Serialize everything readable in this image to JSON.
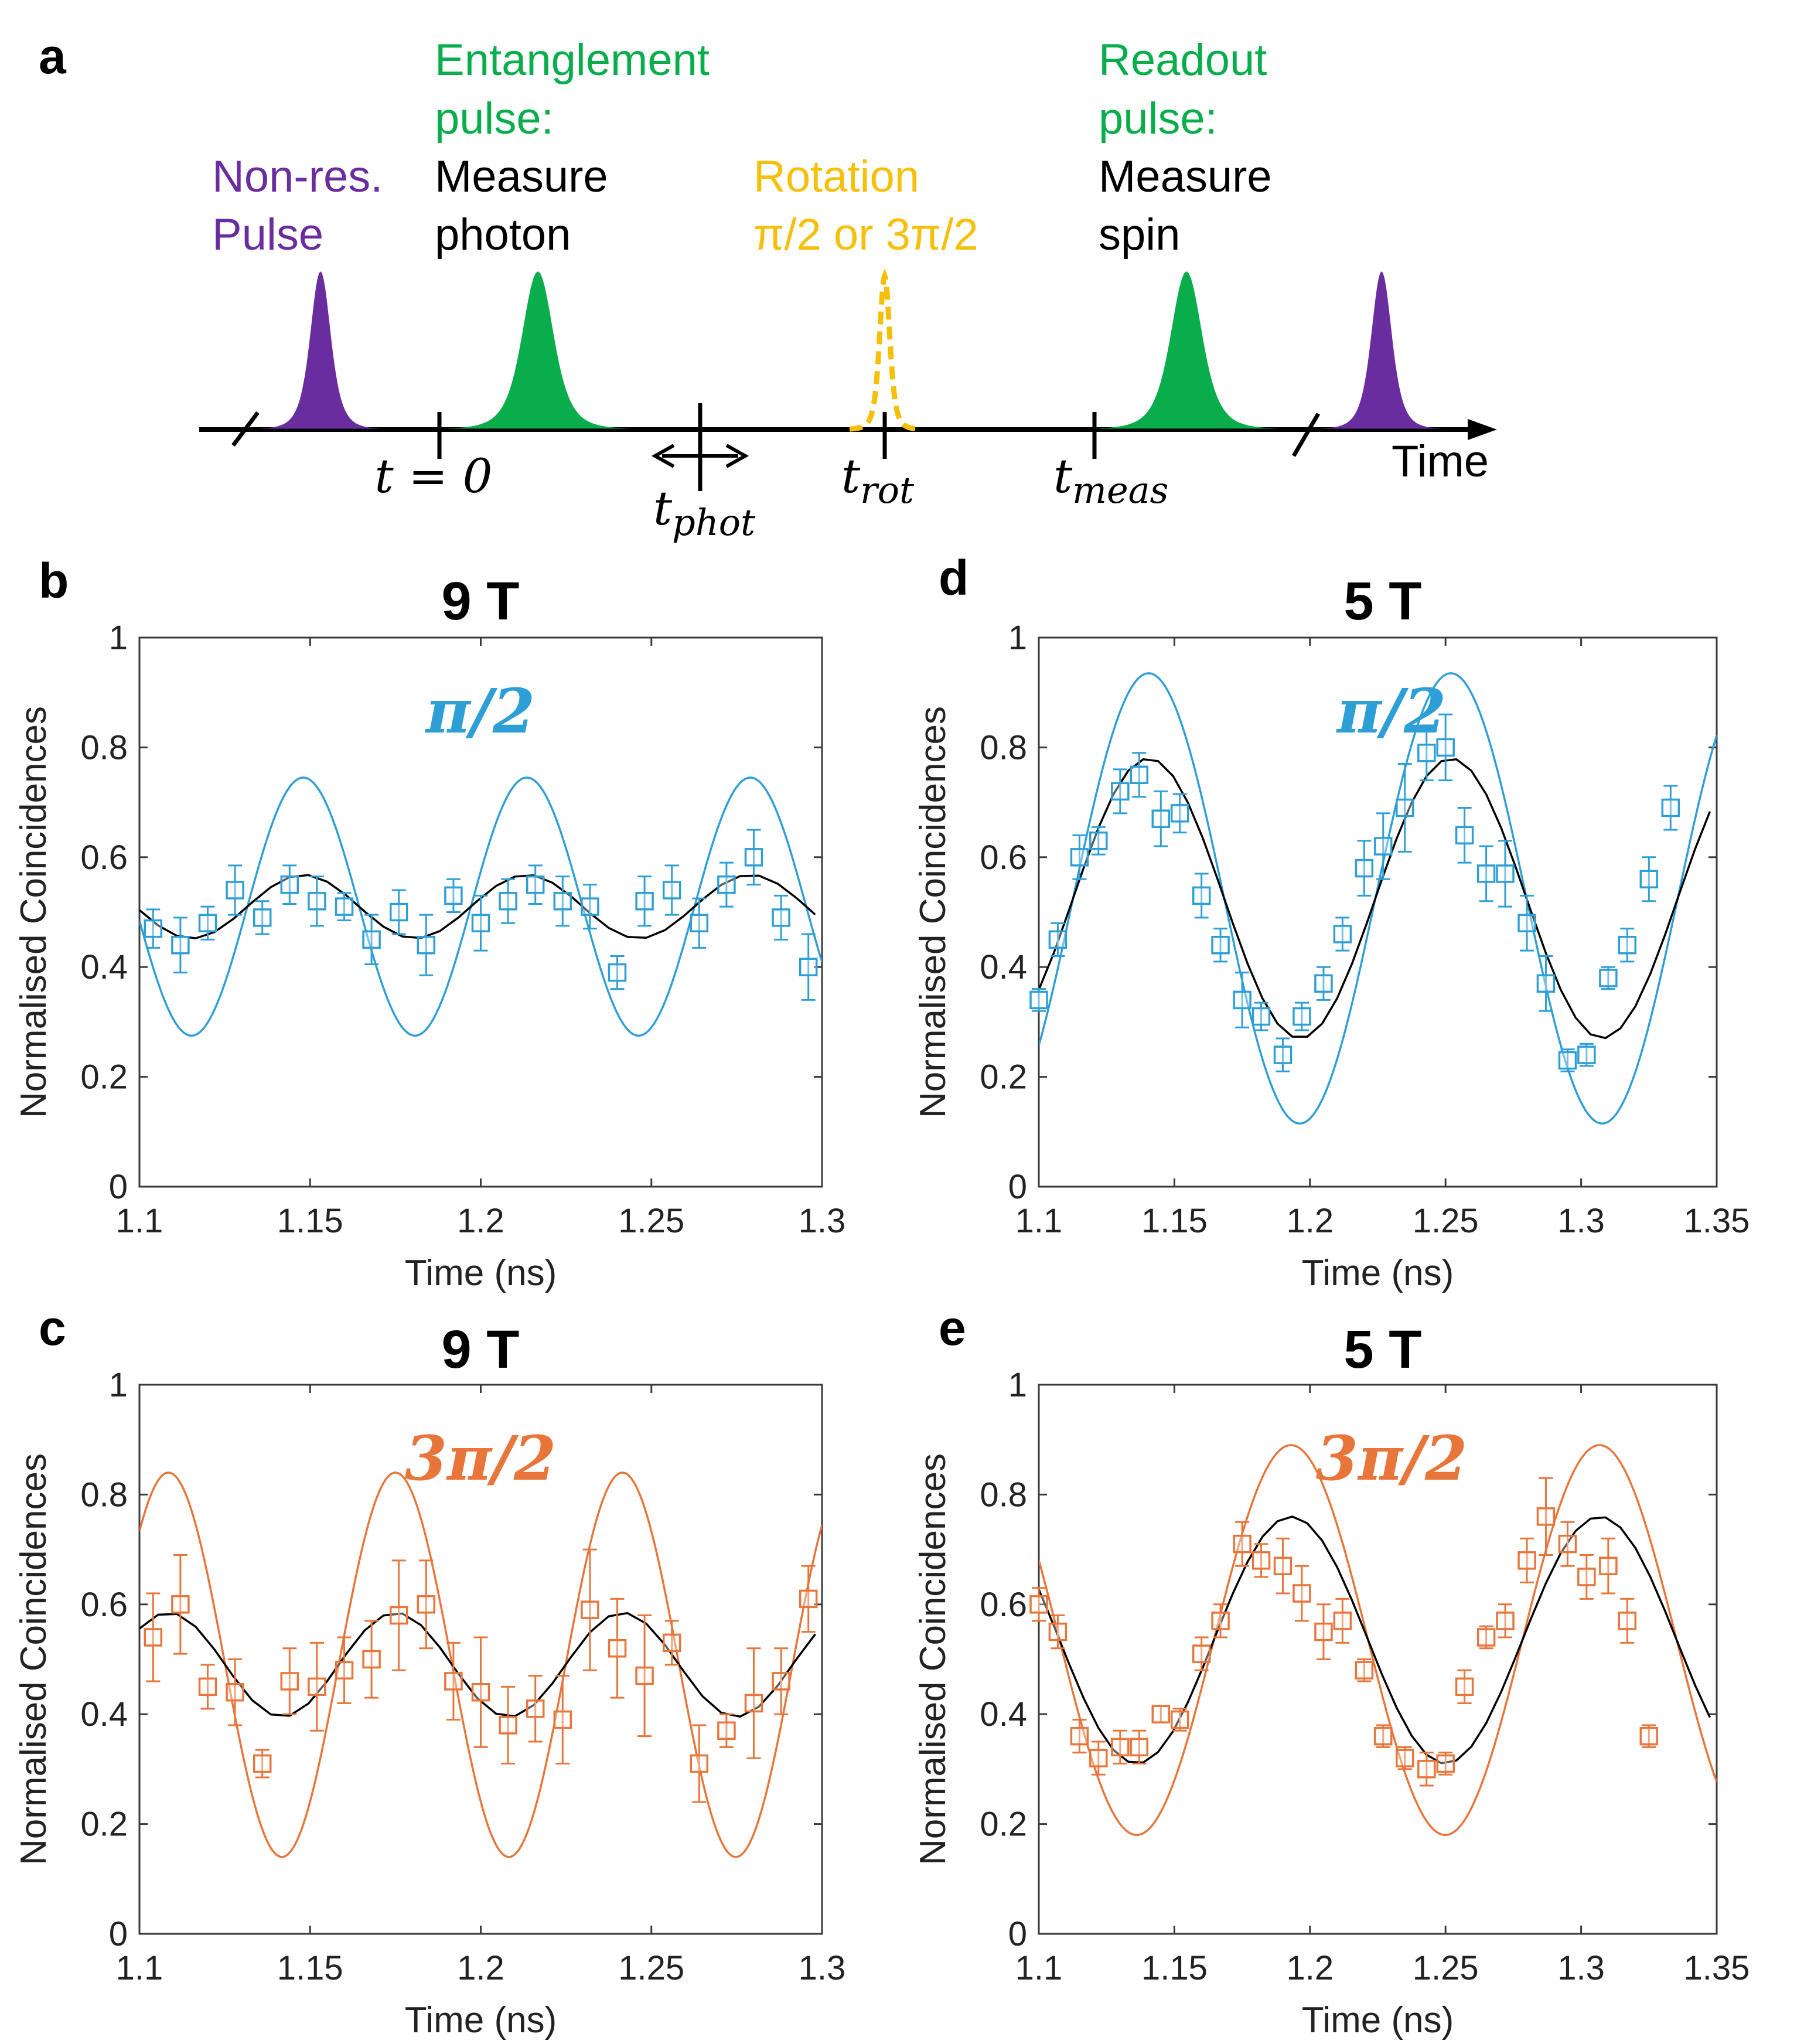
{
  "figure": {
    "panel_labels": [
      "a",
      "b",
      "c",
      "d",
      "e"
    ]
  },
  "schematic": {
    "nonres_label": [
      "Non-res.",
      "Pulse"
    ],
    "entangle_label": [
      "Entanglement",
      "pulse:"
    ],
    "entangle_sub": [
      "Measure",
      "photon"
    ],
    "rotation_label": [
      "Rotation",
      "π/2 or 3π/2"
    ],
    "readout_label": [
      "Readout",
      "pulse:"
    ],
    "readout_sub": [
      "Measure",
      "spin"
    ],
    "time_label": "Time",
    "t0": "t = 0",
    "tphot": {
      "base": "t",
      "sub": "phot"
    },
    "trot": {
      "base": "t",
      "sub": "rot"
    },
    "tmeas": {
      "base": "t",
      "sub": "meas"
    },
    "colors": {
      "nonres": "#6a2d9f",
      "entangle": "#0aad4c",
      "rotation": "#f6c00a",
      "black": "#000000"
    }
  },
  "chart_data": [
    {
      "panel": "b",
      "type": "scatter",
      "title": "9 T",
      "annotation": "π/2",
      "color": "#2e9fd6",
      "xlabel": "Time (ns)",
      "ylabel": "Normalised Coincidences",
      "xlim": [
        1.1,
        1.3
      ],
      "ylim": [
        0,
        1
      ],
      "xticks": [
        "1.1",
        "1.15",
        "1.2",
        "1.25",
        "1.3"
      ],
      "yticks": [
        "0",
        "0.2",
        "0.4",
        "0.6",
        "0.8",
        "1"
      ],
      "ideal": {
        "mean": 0.51,
        "amp": 0.235,
        "period": 0.0655,
        "t_peak": 1.148
      },
      "fit": {
        "mean": 0.51,
        "amp": 0.058,
        "period": 0.0655,
        "t_peak": 1.148,
        "step": 0.0055
      },
      "points": [
        {
          "x": 1.104,
          "y": 0.47,
          "err": 0.035
        },
        {
          "x": 1.112,
          "y": 0.44,
          "err": 0.05
        },
        {
          "x": 1.12,
          "y": 0.48,
          "err": 0.03
        },
        {
          "x": 1.128,
          "y": 0.54,
          "err": 0.045
        },
        {
          "x": 1.136,
          "y": 0.49,
          "err": 0.03
        },
        {
          "x": 1.144,
          "y": 0.55,
          "err": 0.035
        },
        {
          "x": 1.152,
          "y": 0.52,
          "err": 0.045
        },
        {
          "x": 1.16,
          "y": 0.51,
          "err": 0.025
        },
        {
          "x": 1.168,
          "y": 0.45,
          "err": 0.045
        },
        {
          "x": 1.176,
          "y": 0.5,
          "err": 0.04
        },
        {
          "x": 1.184,
          "y": 0.44,
          "err": 0.055
        },
        {
          "x": 1.192,
          "y": 0.53,
          "err": 0.03
        },
        {
          "x": 1.2,
          "y": 0.48,
          "err": 0.05
        },
        {
          "x": 1.208,
          "y": 0.52,
          "err": 0.04
        },
        {
          "x": 1.216,
          "y": 0.55,
          "err": 0.035
        },
        {
          "x": 1.224,
          "y": 0.52,
          "err": 0.045
        },
        {
          "x": 1.232,
          "y": 0.51,
          "err": 0.04
        },
        {
          "x": 1.24,
          "y": 0.39,
          "err": 0.03
        },
        {
          "x": 1.248,
          "y": 0.52,
          "err": 0.045
        },
        {
          "x": 1.256,
          "y": 0.54,
          "err": 0.045
        },
        {
          "x": 1.264,
          "y": 0.48,
          "err": 0.045
        },
        {
          "x": 1.272,
          "y": 0.55,
          "err": 0.04
        },
        {
          "x": 1.28,
          "y": 0.6,
          "err": 0.05
        },
        {
          "x": 1.288,
          "y": 0.49,
          "err": 0.04
        },
        {
          "x": 1.296,
          "y": 0.4,
          "err": 0.06
        }
      ]
    },
    {
      "panel": "c",
      "type": "scatter",
      "title": "9 T",
      "annotation": "3π/2",
      "color": "#e8753a",
      "xlabel": "Time (ns)",
      "ylabel": "Normalised Coincidences",
      "xlim": [
        1.1,
        1.3
      ],
      "ylim": [
        0,
        1
      ],
      "xticks": [
        "1.1",
        "1.15",
        "1.2",
        "1.25",
        "1.3"
      ],
      "yticks": [
        "0",
        "0.2",
        "0.4",
        "0.6",
        "0.8",
        "1"
      ],
      "ideal": {
        "mean": 0.49,
        "amp": 0.35,
        "period": 0.0665,
        "t_peak": 1.175
      },
      "fit": {
        "mean": 0.49,
        "amp": 0.095,
        "period": 0.0665,
        "t_peak": 1.175,
        "step": 0.0055
      },
      "points": [
        {
          "x": 1.104,
          "y": 0.54,
          "err": 0.08
        },
        {
          "x": 1.112,
          "y": 0.6,
          "err": 0.09
        },
        {
          "x": 1.12,
          "y": 0.45,
          "err": 0.04
        },
        {
          "x": 1.128,
          "y": 0.44,
          "err": 0.06
        },
        {
          "x": 1.136,
          "y": 0.31,
          "err": 0.025
        },
        {
          "x": 1.144,
          "y": 0.46,
          "err": 0.06
        },
        {
          "x": 1.152,
          "y": 0.45,
          "err": 0.08
        },
        {
          "x": 1.16,
          "y": 0.48,
          "err": 0.06
        },
        {
          "x": 1.168,
          "y": 0.5,
          "err": 0.07
        },
        {
          "x": 1.176,
          "y": 0.58,
          "err": 0.1
        },
        {
          "x": 1.184,
          "y": 0.6,
          "err": 0.08
        },
        {
          "x": 1.192,
          "y": 0.46,
          "err": 0.07
        },
        {
          "x": 1.2,
          "y": 0.44,
          "err": 0.1
        },
        {
          "x": 1.208,
          "y": 0.38,
          "err": 0.07
        },
        {
          "x": 1.216,
          "y": 0.41,
          "err": 0.06
        },
        {
          "x": 1.224,
          "y": 0.39,
          "err": 0.08
        },
        {
          "x": 1.232,
          "y": 0.59,
          "err": 0.11
        },
        {
          "x": 1.24,
          "y": 0.52,
          "err": 0.09
        },
        {
          "x": 1.248,
          "y": 0.47,
          "err": 0.11
        },
        {
          "x": 1.256,
          "y": 0.53,
          "err": 0.04
        },
        {
          "x": 1.264,
          "y": 0.31,
          "err": 0.07
        },
        {
          "x": 1.272,
          "y": 0.37,
          "err": 0.03
        },
        {
          "x": 1.28,
          "y": 0.42,
          "err": 0.1
        },
        {
          "x": 1.288,
          "y": 0.46,
          "err": 0.06
        },
        {
          "x": 1.296,
          "y": 0.61,
          "err": 0.06
        }
      ]
    },
    {
      "panel": "d",
      "type": "scatter",
      "title": "5 T",
      "annotation": "π/2",
      "color": "#2e9fd6",
      "xlabel": "Time (ns)",
      "ylabel": "Normalised Coincidences",
      "xlim": [
        1.1,
        1.35
      ],
      "ylim": [
        0,
        1
      ],
      "xticks": [
        "1.1",
        "1.15",
        "1.2",
        "1.25",
        "1.3",
        "1.35"
      ],
      "yticks": [
        "0",
        "0.2",
        "0.4",
        "0.6",
        "0.8",
        "1"
      ],
      "ideal": {
        "mean": 0.525,
        "amp": 0.41,
        "period": 0.1115,
        "t_peak": 1.1405
      },
      "fit": {
        "mean": 0.525,
        "amp": 0.255,
        "period": 0.1115,
        "t_peak": 1.1405,
        "step": 0.0055
      },
      "points": [
        {
          "x": 1.1,
          "y": 0.34,
          "err": 0.02
        },
        {
          "x": 1.107,
          "y": 0.45,
          "err": 0.03
        },
        {
          "x": 1.115,
          "y": 0.6,
          "err": 0.04
        },
        {
          "x": 1.122,
          "y": 0.63,
          "err": 0.025
        },
        {
          "x": 1.13,
          "y": 0.72,
          "err": 0.04
        },
        {
          "x": 1.137,
          "y": 0.75,
          "err": 0.04
        },
        {
          "x": 1.145,
          "y": 0.67,
          "err": 0.05
        },
        {
          "x": 1.152,
          "y": 0.68,
          "err": 0.035
        },
        {
          "x": 1.16,
          "y": 0.53,
          "err": 0.04
        },
        {
          "x": 1.167,
          "y": 0.44,
          "err": 0.03
        },
        {
          "x": 1.175,
          "y": 0.34,
          "err": 0.05
        },
        {
          "x": 1.182,
          "y": 0.31,
          "err": 0.025
        },
        {
          "x": 1.19,
          "y": 0.24,
          "err": 0.03
        },
        {
          "x": 1.197,
          "y": 0.31,
          "err": 0.025
        },
        {
          "x": 1.205,
          "y": 0.37,
          "err": 0.03
        },
        {
          "x": 1.212,
          "y": 0.46,
          "err": 0.03
        },
        {
          "x": 1.22,
          "y": 0.58,
          "err": 0.05
        },
        {
          "x": 1.227,
          "y": 0.62,
          "err": 0.06
        },
        {
          "x": 1.235,
          "y": 0.69,
          "err": 0.08
        },
        {
          "x": 1.243,
          "y": 0.79,
          "err": 0.05
        },
        {
          "x": 1.25,
          "y": 0.8,
          "err": 0.06
        },
        {
          "x": 1.257,
          "y": 0.64,
          "err": 0.05
        },
        {
          "x": 1.265,
          "y": 0.57,
          "err": 0.05
        },
        {
          "x": 1.272,
          "y": 0.57,
          "err": 0.06
        },
        {
          "x": 1.28,
          "y": 0.48,
          "err": 0.05
        },
        {
          "x": 1.287,
          "y": 0.37,
          "err": 0.05
        },
        {
          "x": 1.295,
          "y": 0.23,
          "err": 0.02
        },
        {
          "x": 1.302,
          "y": 0.24,
          "err": 0.02
        },
        {
          "x": 1.31,
          "y": 0.38,
          "err": 0.02
        },
        {
          "x": 1.317,
          "y": 0.44,
          "err": 0.03
        },
        {
          "x": 1.325,
          "y": 0.56,
          "err": 0.04
        },
        {
          "x": 1.333,
          "y": 0.69,
          "err": 0.04
        }
      ]
    },
    {
      "panel": "e",
      "type": "scatter",
      "title": "5 T",
      "annotation": "3π/2",
      "color": "#e8753a",
      "xlabel": "Time (ns)",
      "ylabel": "Normalised Coincidences",
      "xlim": [
        1.1,
        1.35
      ],
      "ylim": [
        0,
        1
      ],
      "xticks": [
        "1.1",
        "1.15",
        "1.2",
        "1.25",
        "1.3",
        "1.35"
      ],
      "yticks": [
        "0",
        "0.2",
        "0.4",
        "0.6",
        "0.8",
        "1"
      ],
      "ideal": {
        "mean": 0.535,
        "amp": 0.355,
        "period": 0.1138,
        "t_peak": 1.193
      },
      "fit": {
        "mean": 0.535,
        "amp": 0.225,
        "period": 0.1138,
        "t_peak": 1.193,
        "step": 0.0055
      },
      "points": [
        {
          "x": 1.1,
          "y": 0.6,
          "err": 0.03
        },
        {
          "x": 1.107,
          "y": 0.55,
          "err": 0.03
        },
        {
          "x": 1.115,
          "y": 0.36,
          "err": 0.03
        },
        {
          "x": 1.122,
          "y": 0.32,
          "err": 0.03
        },
        {
          "x": 1.13,
          "y": 0.34,
          "err": 0.03
        },
        {
          "x": 1.137,
          "y": 0.34,
          "err": 0.03
        },
        {
          "x": 1.145,
          "y": 0.4,
          "err": 0.015
        },
        {
          "x": 1.152,
          "y": 0.39,
          "err": 0.02
        },
        {
          "x": 1.16,
          "y": 0.51,
          "err": 0.03
        },
        {
          "x": 1.167,
          "y": 0.57,
          "err": 0.03
        },
        {
          "x": 1.175,
          "y": 0.71,
          "err": 0.04
        },
        {
          "x": 1.182,
          "y": 0.68,
          "err": 0.03
        },
        {
          "x": 1.19,
          "y": 0.67,
          "err": 0.05
        },
        {
          "x": 1.197,
          "y": 0.62,
          "err": 0.05
        },
        {
          "x": 1.205,
          "y": 0.55,
          "err": 0.05
        },
        {
          "x": 1.212,
          "y": 0.57,
          "err": 0.04
        },
        {
          "x": 1.22,
          "y": 0.48,
          "err": 0.02
        },
        {
          "x": 1.227,
          "y": 0.36,
          "err": 0.02
        },
        {
          "x": 1.235,
          "y": 0.32,
          "err": 0.02
        },
        {
          "x": 1.243,
          "y": 0.3,
          "err": 0.03
        },
        {
          "x": 1.25,
          "y": 0.31,
          "err": 0.02
        },
        {
          "x": 1.257,
          "y": 0.45,
          "err": 0.03
        },
        {
          "x": 1.265,
          "y": 0.54,
          "err": 0.02
        },
        {
          "x": 1.272,
          "y": 0.57,
          "err": 0.03
        },
        {
          "x": 1.28,
          "y": 0.68,
          "err": 0.04
        },
        {
          "x": 1.287,
          "y": 0.76,
          "err": 0.07
        },
        {
          "x": 1.295,
          "y": 0.71,
          "err": 0.04
        },
        {
          "x": 1.302,
          "y": 0.65,
          "err": 0.04
        },
        {
          "x": 1.31,
          "y": 0.67,
          "err": 0.05
        },
        {
          "x": 1.317,
          "y": 0.57,
          "err": 0.04
        },
        {
          "x": 1.325,
          "y": 0.36,
          "err": 0.02
        }
      ]
    }
  ]
}
